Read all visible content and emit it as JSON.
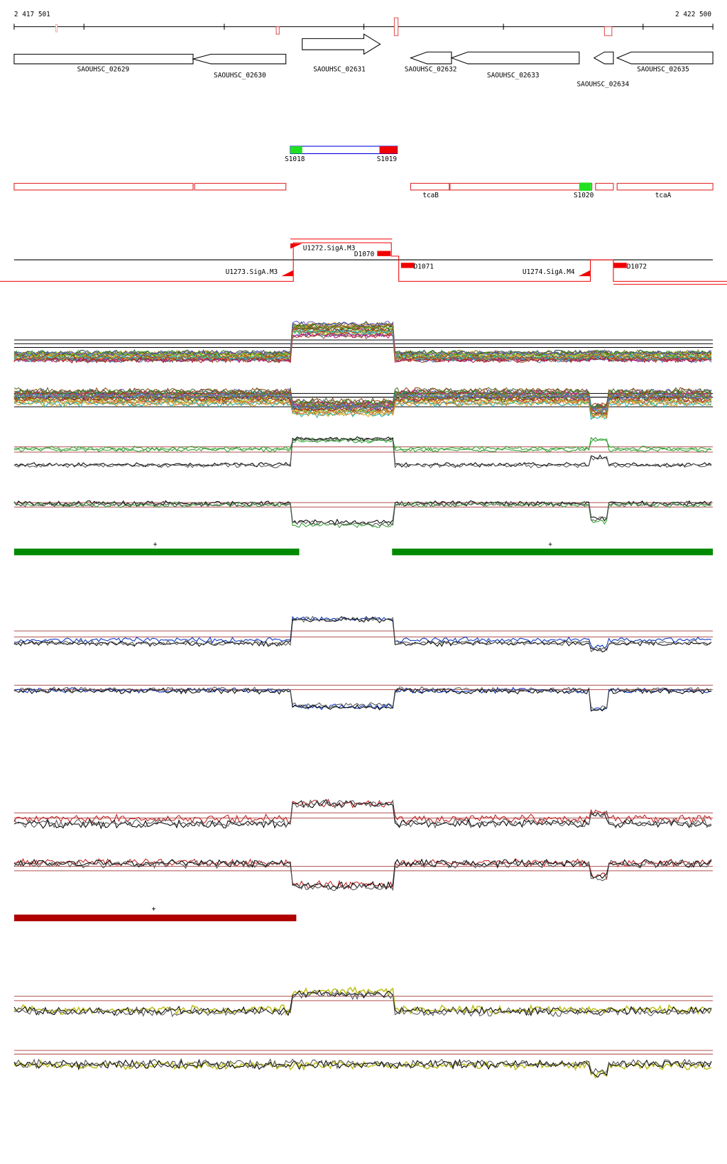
{
  "coordinates": {
    "start": "2 417 501",
    "end": "2 422 500"
  },
  "genes": [
    {
      "label": "SAOUHSC_02629"
    },
    {
      "label": "SAOUHSC_02630"
    },
    {
      "label": "SAOUHSC_02631"
    },
    {
      "label": "SAOUHSC_02632"
    },
    {
      "label": "SAOUHSC_02633"
    },
    {
      "label": "SAOUHSC_02634"
    },
    {
      "label": "SAOUHSC_02635"
    }
  ],
  "segments": [
    {
      "label": "S1018"
    },
    {
      "label": "S1019"
    },
    {
      "label": "tcaB"
    },
    {
      "label": "S1020"
    },
    {
      "label": "tcaA"
    }
  ],
  "features": [
    {
      "label": "U1272.SigA.M3"
    },
    {
      "label": "D1070"
    },
    {
      "label": "U1273.SigA.M3"
    },
    {
      "label": "D1071"
    },
    {
      "label": "U1274.SigA.M4"
    },
    {
      "label": "D1072"
    }
  ],
  "strand_marks": [
    {
      "label": "+"
    },
    {
      "label": "+"
    },
    {
      "label": "+"
    }
  ]
}
